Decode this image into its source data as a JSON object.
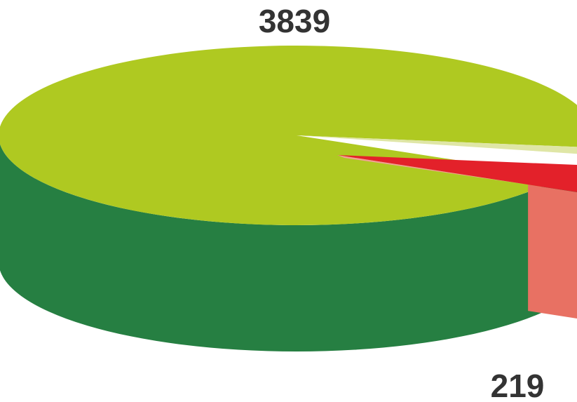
{
  "chart_data": {
    "type": "pie",
    "style": "3d",
    "categories": [
      "",
      ""
    ],
    "values": [
      3839,
      219
    ],
    "data_labels": [
      "3839",
      "219"
    ],
    "colors": {
      "large_top": "#afc921",
      "large_side": "#267f42",
      "small_top": "#e3212a",
      "small_side_light": "#e87163",
      "small_side_dark": "#c5302f",
      "small_edge": "#f2a096",
      "large_cut_edge": "#dfe6a6"
    }
  }
}
